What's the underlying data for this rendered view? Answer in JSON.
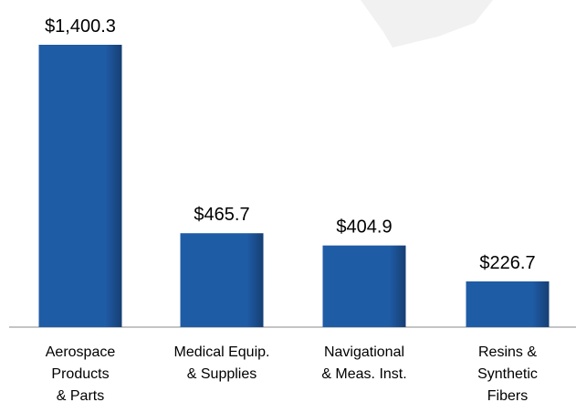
{
  "chart_data": {
    "type": "bar",
    "categories": [
      "Aerospace\nProducts\n& Parts",
      "Medical Equip.\n& Supplies",
      "Navigational\n& Meas. Inst.",
      "Resins &\nSynthetic\nFibers"
    ],
    "values": [
      1400.3,
      465.7,
      404.9,
      226.7
    ],
    "value_labels": [
      "$1,400.3",
      "$465.7",
      "$404.9",
      "$226.7"
    ],
    "color": "#1f5ca6"
  }
}
